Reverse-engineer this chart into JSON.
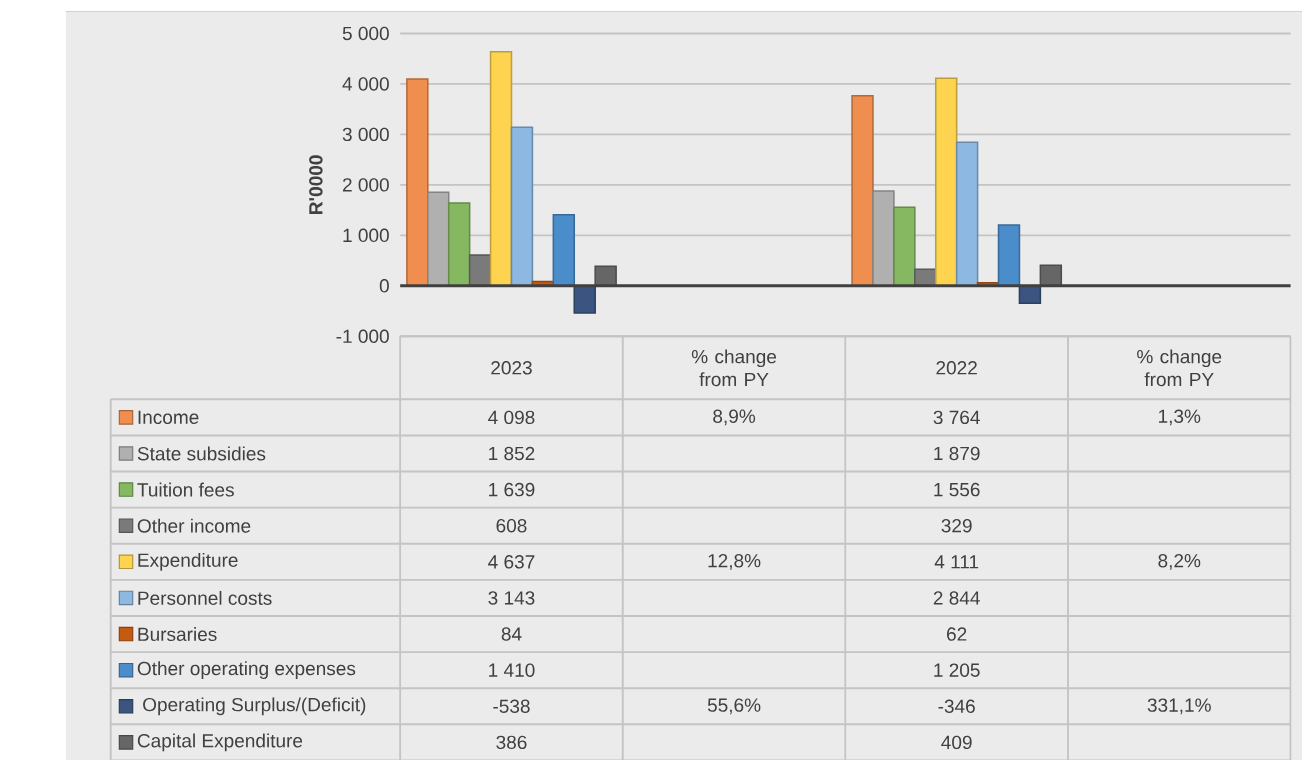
{
  "chart_data": {
    "type": "bar",
    "ylabel": "R'0000",
    "categories": [
      "2023",
      "% change from PY",
      "2022",
      "% change from PY"
    ],
    "ylim": [
      -1000,
      5000
    ],
    "yticks": [
      {
        "value": -1000,
        "label": "-1 000"
      },
      {
        "value": 0,
        "label": "0"
      },
      {
        "value": 1000,
        "label": "1 000"
      },
      {
        "value": 2000,
        "label": "2 000"
      },
      {
        "value": 3000,
        "label": "3 000"
      },
      {
        "value": 4000,
        "label": "4 000"
      },
      {
        "value": 5000,
        "label": "5 000"
      }
    ],
    "grid": "y",
    "legend": "bottom left",
    "series": [
      {
        "name": "Income",
        "color": "#ef8e4f",
        "values": [
          4098,
          null,
          3764,
          null
        ],
        "value_labels": [
          "4 098",
          "8,9%",
          "3 764",
          "1,3%"
        ]
      },
      {
        "name": "State subsidies",
        "color": "#b0b0b0",
        "values": [
          1852,
          null,
          1879,
          null
        ],
        "value_labels": [
          "1 852",
          null,
          "1 879",
          null
        ]
      },
      {
        "name": "Tuition fees",
        "color": "#86b862",
        "values": [
          1639,
          null,
          1556,
          null
        ],
        "value_labels": [
          "1 639",
          null,
          "1 556",
          null
        ]
      },
      {
        "name": "Other income",
        "color": "#7a7a7a",
        "values": [
          608,
          null,
          329,
          null
        ],
        "value_labels": [
          "608",
          null,
          "329",
          null
        ]
      },
      {
        "name": "Expenditure",
        "color": "#fdd34f",
        "values": [
          4637,
          null,
          4111,
          null
        ],
        "value_labels": [
          "4 637",
          "12,8%",
          "4 111",
          "8,2%"
        ]
      },
      {
        "name": "Personnel costs",
        "color": "#8db8e1",
        "values": [
          3143,
          null,
          2844,
          null
        ],
        "value_labels": [
          "3 143",
          null,
          "2 844",
          null
        ]
      },
      {
        "name": "Bursaries",
        "color": "#c55a11",
        "values": [
          84,
          null,
          62,
          null
        ],
        "value_labels": [
          "84",
          null,
          "62",
          null
        ]
      },
      {
        "name": "Other operating expenses",
        "color": "#4b8dcb",
        "values": [
          1410,
          null,
          1205,
          null
        ],
        "value_labels": [
          "1 410",
          null,
          "1 205",
          null
        ]
      },
      {
        "name": " Operating Surplus/(Deficit)",
        "color": "#3b5580",
        "values": [
          -538,
          null,
          -346,
          null
        ],
        "value_labels": [
          "-538",
          "55,6%",
          "-346",
          "331,1%"
        ]
      },
      {
        "name": "Capital Expenditure",
        "color": "#666666",
        "values": [
          386,
          null,
          409,
          null
        ],
        "value_labels": [
          "386",
          null,
          "409",
          null
        ]
      }
    ]
  }
}
